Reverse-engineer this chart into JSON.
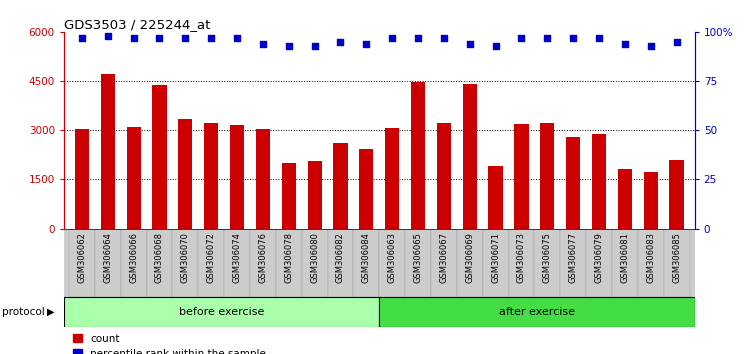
{
  "title": "GDS3503 / 225244_at",
  "samples": [
    "GSM306062",
    "GSM306064",
    "GSM306066",
    "GSM306068",
    "GSM306070",
    "GSM306072",
    "GSM306074",
    "GSM306076",
    "GSM306078",
    "GSM306080",
    "GSM306082",
    "GSM306084",
    "GSM306063",
    "GSM306065",
    "GSM306067",
    "GSM306069",
    "GSM306071",
    "GSM306073",
    "GSM306075",
    "GSM306077",
    "GSM306079",
    "GSM306081",
    "GSM306083",
    "GSM306085"
  ],
  "counts": [
    3050,
    4720,
    3100,
    4380,
    3350,
    3230,
    3170,
    3050,
    2000,
    2050,
    2620,
    2430,
    3070,
    4470,
    3220,
    4400,
    1900,
    3200,
    3220,
    2800,
    2870,
    1820,
    1720,
    2100
  ],
  "percentile_ranks": [
    97,
    98,
    97,
    97,
    97,
    97,
    97,
    94,
    93,
    93,
    95,
    94,
    97,
    97,
    97,
    94,
    93,
    97,
    97,
    97,
    97,
    94,
    93,
    95
  ],
  "bar_color": "#cc0000",
  "dot_color": "#0000cc",
  "before_exercise_count": 12,
  "after_exercise_count": 12,
  "before_color": "#aaffaa",
  "after_color": "#44dd44",
  "protocol_label": "protocol",
  "before_label": "before exercise",
  "after_label": "after exercise",
  "ylim_left": [
    0,
    6000
  ],
  "ylim_right": [
    0,
    100
  ],
  "yticks_left": [
    0,
    1500,
    3000,
    4500,
    6000
  ],
  "yticks_right": [
    0,
    25,
    50,
    75,
    100
  ],
  "ytick_labels_right": [
    "0",
    "25",
    "50",
    "75",
    "100%"
  ],
  "grid_values": [
    1500,
    3000,
    4500
  ],
  "background_color": "#ffffff",
  "xtick_bg": "#cccccc"
}
